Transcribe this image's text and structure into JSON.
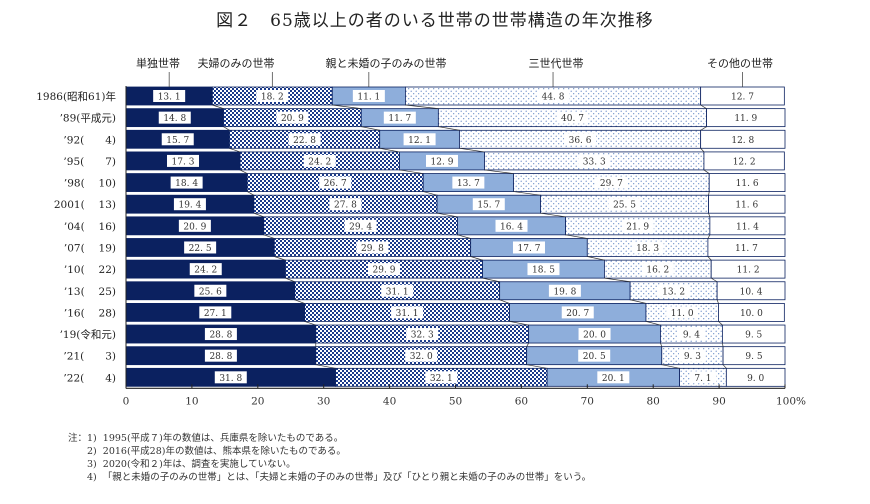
{
  "title": "図２　65歳以上の者のいる世帯の世帯構造の年次推移",
  "chart_data": {
    "type": "bar",
    "orientation": "horizontal",
    "stacked": true,
    "title": "図２　65歳以上の者のいる世帯の世帯構造の年次推移",
    "xlim": [
      0,
      100
    ],
    "x_ticks": [
      "0",
      "10",
      "20",
      "30",
      "40",
      "50",
      "60",
      "70",
      "80",
      "90",
      "100%"
    ],
    "legend_placement": "top",
    "categories": [
      "1986(昭和61)年",
      "’89(平成元)",
      "’92(　　4)",
      "’95(　　7)",
      "’98(　 10)",
      "2001(　 13)",
      "’04(　 16)",
      "’07(　 19)",
      "’10(　 22)",
      "’13(　 25)",
      "’16(　 28)",
      "’19(令和元)",
      "’21(　　3)",
      "’22(　　4)"
    ],
    "series": [
      {
        "name": "単独世帯",
        "color": "#0b2160",
        "pattern": "solid",
        "values": [
          13.1,
          14.8,
          15.7,
          17.3,
          18.4,
          19.4,
          20.9,
          22.5,
          24.2,
          25.6,
          27.1,
          28.8,
          28.8,
          31.8
        ]
      },
      {
        "name": "夫婦のみの世帯",
        "color": "#1a3a8a",
        "pattern": "checker",
        "values": [
          18.2,
          20.9,
          22.8,
          24.2,
          26.7,
          27.8,
          29.4,
          29.8,
          29.9,
          31.1,
          31.1,
          32.3,
          32.0,
          32.1
        ]
      },
      {
        "name": "親と未婚の子のみの世帯",
        "color": "#8eaedb",
        "pattern": "solid",
        "values": [
          11.1,
          11.7,
          12.1,
          12.9,
          13.7,
          15.7,
          16.4,
          17.7,
          18.5,
          19.8,
          20.7,
          20.0,
          20.5,
          20.1
        ]
      },
      {
        "name": "三世代世帯",
        "color": "#5a7fc0",
        "pattern": "dots",
        "values": [
          44.8,
          40.7,
          36.6,
          33.3,
          29.7,
          25.5,
          21.9,
          18.3,
          16.2,
          13.2,
          11.0,
          9.4,
          9.3,
          7.1
        ]
      },
      {
        "name": "その他の世帯",
        "color": "#ffffff",
        "pattern": "none",
        "values": [
          12.7,
          11.9,
          12.8,
          12.2,
          11.6,
          11.6,
          11.4,
          11.7,
          11.2,
          10.4,
          10.0,
          9.5,
          9.5,
          9.0
        ]
      }
    ]
  },
  "notes": [
    "注：1)  1995(平成７)年の数値は、兵庫県を除いたものである。",
    "　　2)  2016(平成28)年の数値は、熊本県を除いたものである。",
    "　　3)  2020(令和２)年は、調査を実施していない。",
    "　　4)  「親と未婚の子のみの世帯」とは、「夫婦と未婚の子のみの世帯」及び「ひとり親と未婚の子のみの世帯」をいう。"
  ]
}
